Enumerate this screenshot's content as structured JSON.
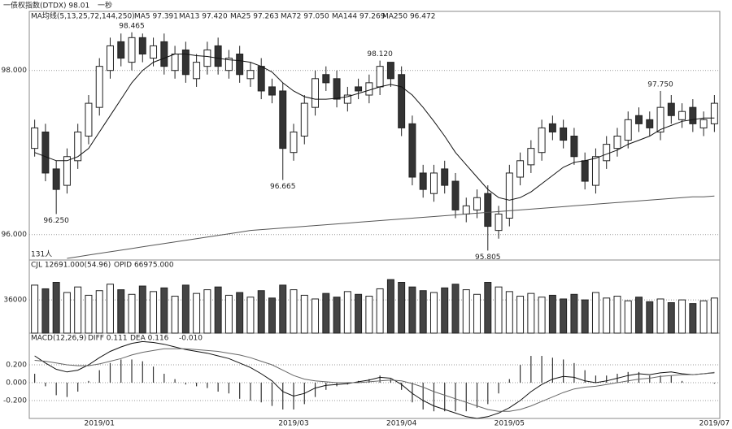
{
  "header": {
    "title": "一债权指数(DTDX) 98.01",
    "extra": "一秒"
  },
  "chart_data": [
    {
      "type": "candlestick",
      "categories": [
        null,
        null,
        null,
        null,
        null,
        null,
        "2019/01",
        null,
        null,
        null,
        null,
        null,
        null,
        null,
        null,
        null,
        null,
        null,
        null,
        null,
        null,
        null,
        null,
        null,
        "2019/03",
        null,
        null,
        null,
        null,
        null,
        null,
        null,
        null,
        null,
        "2019/04",
        null,
        null,
        null,
        null,
        null,
        null,
        null,
        null,
        null,
        "2019/05",
        null,
        null,
        null,
        null,
        null,
        null,
        null,
        null,
        null,
        null,
        null,
        null,
        null,
        null,
        null,
        null,
        null,
        null,
        "2019/07"
      ],
      "open": [
        97.05,
        97.25,
        96.8,
        96.6,
        96.9,
        97.2,
        97.55,
        98.0,
        98.35,
        98.1,
        98.4,
        98.15,
        98.35,
        98.0,
        98.25,
        97.9,
        98.05,
        98.3,
        98.0,
        98.2,
        97.9,
        98.05,
        97.8,
        97.75,
        97.0,
        97.2,
        97.55,
        97.95,
        97.9,
        97.6,
        97.8,
        97.7,
        97.8,
        98.1,
        97.95,
        97.35,
        96.75,
        96.5,
        96.8,
        96.65,
        96.25,
        96.3,
        96.5,
        96.05,
        96.2,
        96.7,
        96.85,
        97.0,
        97.35,
        97.3,
        97.2,
        96.9,
        96.6,
        96.9,
        97.05,
        97.15,
        97.45,
        97.4,
        97.25,
        97.6,
        97.4,
        97.55,
        97.3,
        97.35
      ],
      "high": [
        97.4,
        97.35,
        96.9,
        97.05,
        97.35,
        97.7,
        98.15,
        98.4,
        98.45,
        98.465,
        98.45,
        98.4,
        98.45,
        98.3,
        98.35,
        98.2,
        98.35,
        98.4,
        98.25,
        98.3,
        98.1,
        98.15,
        97.9,
        97.85,
        97.35,
        97.7,
        98.0,
        98.05,
        98.0,
        97.8,
        97.9,
        97.95,
        98.12,
        98.1,
        98.05,
        97.45,
        96.85,
        96.85,
        96.9,
        96.75,
        96.45,
        96.55,
        96.6,
        96.35,
        96.85,
        97.0,
        97.15,
        97.4,
        97.45,
        97.4,
        97.3,
        97.0,
        97.05,
        97.2,
        97.3,
        97.5,
        97.55,
        97.5,
        97.75,
        97.7,
        97.6,
        97.65,
        97.5,
        97.7
      ],
      "low": [
        96.95,
        96.65,
        96.25,
        96.5,
        96.8,
        97.1,
        97.45,
        97.9,
        98.05,
        98.0,
        98.1,
        98.05,
        97.95,
        97.9,
        97.85,
        97.8,
        97.95,
        97.95,
        97.9,
        97.85,
        97.8,
        97.65,
        97.6,
        96.665,
        96.9,
        97.1,
        97.45,
        97.75,
        97.55,
        97.5,
        97.65,
        97.6,
        97.7,
        97.8,
        97.2,
        96.6,
        96.45,
        96.4,
        96.5,
        96.2,
        96.15,
        96.2,
        95.805,
        95.95,
        96.1,
        96.6,
        96.75,
        96.9,
        97.15,
        97.05,
        96.85,
        96.55,
        96.5,
        96.8,
        96.95,
        97.05,
        97.25,
        97.2,
        97.15,
        97.35,
        97.3,
        97.25,
        97.2,
        97.25
      ],
      "close": [
        97.3,
        96.75,
        96.55,
        96.95,
        97.25,
        97.6,
        98.05,
        98.3,
        98.15,
        98.4,
        98.2,
        98.3,
        98.05,
        98.2,
        97.95,
        98.1,
        98.25,
        98.05,
        98.15,
        97.95,
        98.0,
        97.75,
        97.7,
        97.05,
        97.25,
        97.6,
        97.9,
        97.85,
        97.65,
        97.7,
        97.75,
        97.85,
        98.05,
        97.9,
        97.3,
        96.7,
        96.55,
        96.75,
        96.6,
        96.3,
        96.35,
        96.45,
        96.1,
        96.25,
        96.75,
        96.9,
        97.05,
        97.3,
        97.25,
        97.15,
        96.95,
        96.65,
        96.95,
        97.1,
        97.2,
        97.4,
        97.35,
        97.3,
        97.55,
        97.45,
        97.5,
        97.35,
        97.4,
        97.6
      ],
      "series": [
        {
          "color": "#111111",
          "values": [
            97.0,
            96.95,
            96.9,
            96.9,
            96.95,
            97.05,
            97.25,
            97.45,
            97.65,
            97.85,
            98.0,
            98.1,
            98.15,
            98.2,
            98.2,
            98.18,
            98.17,
            98.15,
            98.13,
            98.12,
            98.1,
            98.05,
            97.98,
            97.85,
            97.75,
            97.68,
            97.65,
            97.65,
            97.66,
            97.68,
            97.72,
            97.76,
            97.8,
            97.83,
            97.8,
            97.7,
            97.55,
            97.38,
            97.2,
            97.0,
            96.85,
            96.7,
            96.55,
            96.45,
            96.42,
            96.45,
            96.52,
            96.62,
            96.72,
            96.82,
            96.88,
            96.9,
            96.93,
            96.98,
            97.03,
            97.1,
            97.15,
            97.2,
            97.28,
            97.33,
            97.38,
            97.4,
            97.42,
            97.42
          ]
        },
        {
          "color": "#555555",
          "values": [
            null,
            null,
            null,
            95.71,
            95.73,
            95.75,
            95.77,
            95.79,
            95.81,
            95.83,
            95.85,
            95.87,
            95.89,
            95.91,
            95.93,
            95.95,
            95.97,
            95.99,
            96.01,
            96.03,
            96.05,
            96.06,
            96.07,
            96.08,
            96.09,
            96.1,
            96.11,
            96.12,
            96.13,
            96.14,
            96.15,
            96.16,
            96.17,
            96.18,
            96.19,
            96.2,
            96.21,
            96.22,
            96.23,
            96.24,
            96.25,
            96.26,
            96.27,
            96.28,
            96.29,
            96.3,
            96.31,
            96.32,
            96.33,
            96.34,
            96.35,
            96.36,
            96.37,
            96.38,
            96.39,
            96.4,
            96.41,
            96.42,
            96.43,
            96.44,
            96.45,
            96.46,
            96.46,
            96.47
          ]
        }
      ],
      "ma_legend": [
        "MA均线(5,13,25,72,144,250)",
        "MA5 97.391",
        "MA13 97.420",
        "MA25 97.263",
        "MA72 97.050",
        "MA144 97.269",
        "MA250 96.472"
      ],
      "annotations": [
        {
          "text": "98.465",
          "index": 9,
          "kind": "high"
        },
        {
          "text": "98.120",
          "index": 32,
          "kind": "high"
        },
        {
          "text": "96.665",
          "index": 23,
          "kind": "low"
        },
        {
          "text": "96.250",
          "index": 2,
          "kind": "low"
        },
        {
          "text": "97.750",
          "index": 58,
          "kind": "high"
        },
        {
          "text": "95.805",
          "index": 42,
          "kind": "low"
        }
      ],
      "corner_text": "131人",
      "ylim": [
        95.69,
        98.72
      ],
      "yticks": [
        {
          "value": 96,
          "label": "96.000"
        },
        {
          "value": 98,
          "label": "98.000"
        }
      ],
      "grid": true
    },
    {
      "type": "bar",
      "legend": [
        "CJL 12691.000(54.96)",
        "OPID 66975.000"
      ],
      "values": [
        52000,
        48000,
        55000,
        44000,
        50000,
        41000,
        46000,
        53000,
        47000,
        42000,
        51000,
        45000,
        49000,
        40000,
        52000,
        43000,
        47000,
        50000,
        41000,
        44000,
        39000,
        46000,
        38000,
        52000,
        47000,
        41000,
        37000,
        43000,
        39000,
        45000,
        42000,
        40000,
        48000,
        58000,
        55000,
        50000,
        46000,
        44000,
        49000,
        53000,
        47000,
        42000,
        55000,
        50000,
        45000,
        40000,
        43000,
        39000,
        41000,
        37000,
        42000,
        36000,
        44000,
        38000,
        40000,
        35000,
        39000,
        34000,
        37000,
        33000,
        36000,
        32000,
        35000,
        38000
      ],
      "ylim": [
        0,
        79200
      ],
      "yticks": [
        36000
      ],
      "grid": true
    },
    {
      "type": "macd",
      "legend": [
        "MACD(12,26,9)",
        "DIFF 0.111",
        "DEA 0.116",
        "-0.010"
      ],
      "values": [
        0.1,
        -0.04,
        -0.14,
        -0.16,
        -0.1,
        0.02,
        0.14,
        0.22,
        0.26,
        0.26,
        0.24,
        0.18,
        0.1,
        0.04,
        -0.02,
        -0.04,
        -0.06,
        -0.1,
        -0.12,
        -0.18,
        -0.2,
        -0.22,
        -0.26,
        -0.3,
        -0.3,
        -0.24,
        -0.16,
        -0.08,
        -0.04,
        -0.02,
        0.02,
        0.04,
        0.08,
        0.04,
        -0.08,
        -0.22,
        -0.3,
        -0.32,
        -0.32,
        -0.32,
        -0.32,
        -0.28,
        -0.24,
        -0.12,
        0.04,
        0.2,
        0.3,
        0.3,
        0.28,
        0.26,
        0.22,
        0.14,
        0.08,
        0.08,
        0.1,
        0.12,
        0.12,
        0.08,
        0.08,
        0.08,
        0.02,
        0.0,
        0.0,
        -0.01
      ],
      "series": [
        {
          "color": "#111111",
          "values": [
            0.3,
            0.22,
            0.15,
            0.12,
            0.14,
            0.2,
            0.28,
            0.35,
            0.4,
            0.44,
            0.46,
            0.45,
            0.43,
            0.4,
            0.37,
            0.35,
            0.33,
            0.3,
            0.27,
            0.22,
            0.17,
            0.1,
            0.02,
            -0.1,
            -0.15,
            -0.12,
            -0.06,
            -0.03,
            -0.02,
            -0.01,
            0.01,
            0.03,
            0.06,
            0.05,
            -0.02,
            -0.12,
            -0.2,
            -0.26,
            -0.3,
            -0.34,
            -0.38,
            -0.4,
            -0.38,
            -0.34,
            -0.28,
            -0.2,
            -0.1,
            -0.02,
            0.04,
            0.07,
            0.06,
            0.02,
            0.0,
            0.02,
            0.05,
            0.08,
            0.1,
            0.09,
            0.11,
            0.12,
            0.1,
            0.09,
            0.1,
            0.111
          ]
        },
        {
          "color": "#666666",
          "values": [
            0.25,
            0.24,
            0.22,
            0.2,
            0.19,
            0.19,
            0.21,
            0.24,
            0.27,
            0.31,
            0.34,
            0.36,
            0.38,
            0.38,
            0.38,
            0.37,
            0.36,
            0.35,
            0.33,
            0.31,
            0.28,
            0.24,
            0.2,
            0.14,
            0.08,
            0.04,
            0.02,
            0.01,
            0.0,
            0.0,
            0.0,
            0.01,
            0.02,
            0.03,
            0.02,
            -0.01,
            -0.05,
            -0.1,
            -0.14,
            -0.18,
            -0.22,
            -0.26,
            -0.3,
            -0.32,
            -0.32,
            -0.3,
            -0.26,
            -0.21,
            -0.16,
            -0.11,
            -0.07,
            -0.05,
            -0.04,
            -0.02,
            0.0,
            0.02,
            0.04,
            0.05,
            0.07,
            0.08,
            0.09,
            0.09,
            0.1,
            0.116
          ]
        }
      ],
      "ylim": [
        -0.4,
        0.555
      ],
      "yticks": [
        {
          "value": -0.2,
          "label": "-0.200"
        },
        {
          "value": 0,
          "label": "0.000"
        },
        {
          "value": 0.2,
          "label": "0.200"
        }
      ],
      "grid": true
    }
  ]
}
